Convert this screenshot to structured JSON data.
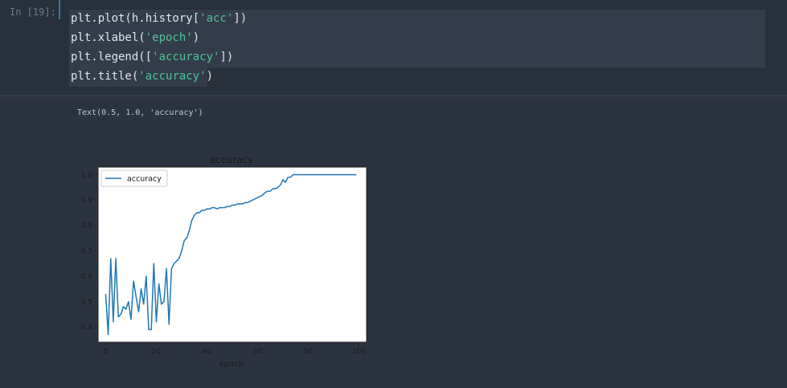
{
  "prompt": "In [19]:",
  "code": [
    [
      {
        "t": "plt.plot(h.history["
      },
      {
        "t": "'acc'",
        "s": 1
      },
      {
        "t": "])"
      }
    ],
    [
      {
        "t": "plt.xlabel("
      },
      {
        "t": "'epoch'",
        "s": 1
      },
      {
        "t": ")"
      }
    ],
    [
      {
        "t": "plt.legend(["
      },
      {
        "t": "'accuracy'",
        "s": 1
      },
      {
        "t": "])"
      }
    ],
    [
      {
        "t": "plt.title("
      },
      {
        "t": "'accuracy'",
        "s": 1
      },
      {
        "t": ")"
      }
    ]
  ],
  "output_text": "Text(0.5, 1.0, 'accuracy')",
  "chart_data": {
    "type": "line",
    "title": "accuracy",
    "xlabel": "epoch",
    "ylabel": "",
    "legend": {
      "entries": [
        "accuracy"
      ],
      "placement": "upper-left"
    },
    "xlim": [
      -3,
      103
    ],
    "ylim": [
      0.34,
      1.03
    ],
    "xticks": [
      0,
      20,
      40,
      60,
      80,
      100
    ],
    "yticks": [
      0.4,
      0.5,
      0.6,
      0.7,
      0.8,
      0.9,
      1.0
    ],
    "colors": {
      "line": "#1f77b4"
    },
    "series": [
      {
        "name": "accuracy",
        "x": [
          0,
          1,
          2,
          3,
          4,
          5,
          6,
          7,
          8,
          9,
          10,
          11,
          12,
          13,
          14,
          15,
          16,
          17,
          18,
          19,
          20,
          21,
          22,
          23,
          24,
          25,
          26,
          27,
          28,
          29,
          30,
          31,
          32,
          33,
          34,
          35,
          36,
          37,
          38,
          39,
          40,
          41,
          42,
          43,
          44,
          45,
          46,
          47,
          48,
          49,
          50,
          51,
          52,
          53,
          54,
          55,
          56,
          57,
          58,
          59,
          60,
          61,
          62,
          63,
          64,
          65,
          66,
          67,
          68,
          69,
          70,
          71,
          72,
          73,
          74,
          75,
          76,
          77,
          78,
          79,
          80,
          81,
          82,
          83,
          84,
          85,
          86,
          87,
          88,
          89,
          90,
          91,
          92,
          93,
          94,
          95,
          96,
          97,
          98,
          99
        ],
        "values": [
          0.53,
          0.37,
          0.67,
          0.42,
          0.67,
          0.44,
          0.45,
          0.48,
          0.47,
          0.5,
          0.43,
          0.58,
          0.52,
          0.46,
          0.55,
          0.49,
          0.6,
          0.39,
          0.39,
          0.65,
          0.42,
          0.57,
          0.49,
          0.5,
          0.63,
          0.41,
          0.63,
          0.65,
          0.66,
          0.67,
          0.7,
          0.74,
          0.75,
          0.78,
          0.82,
          0.84,
          0.85,
          0.85,
          0.86,
          0.86,
          0.865,
          0.865,
          0.87,
          0.87,
          0.865,
          0.87,
          0.87,
          0.87,
          0.875,
          0.875,
          0.88,
          0.88,
          0.885,
          0.885,
          0.885,
          0.89,
          0.89,
          0.895,
          0.9,
          0.905,
          0.91,
          0.915,
          0.92,
          0.93,
          0.935,
          0.935,
          0.945,
          0.945,
          0.95,
          0.96,
          0.98,
          0.97,
          0.99,
          0.99,
          1.0,
          1.0,
          1.0,
          1.0,
          1.0,
          1.0,
          1.0,
          1.0,
          1.0,
          1.0,
          1.0,
          1.0,
          1.0,
          1.0,
          1.0,
          1.0,
          1.0,
          1.0,
          1.0,
          1.0,
          1.0,
          1.0,
          1.0,
          1.0,
          1.0,
          1.0
        ]
      }
    ]
  }
}
